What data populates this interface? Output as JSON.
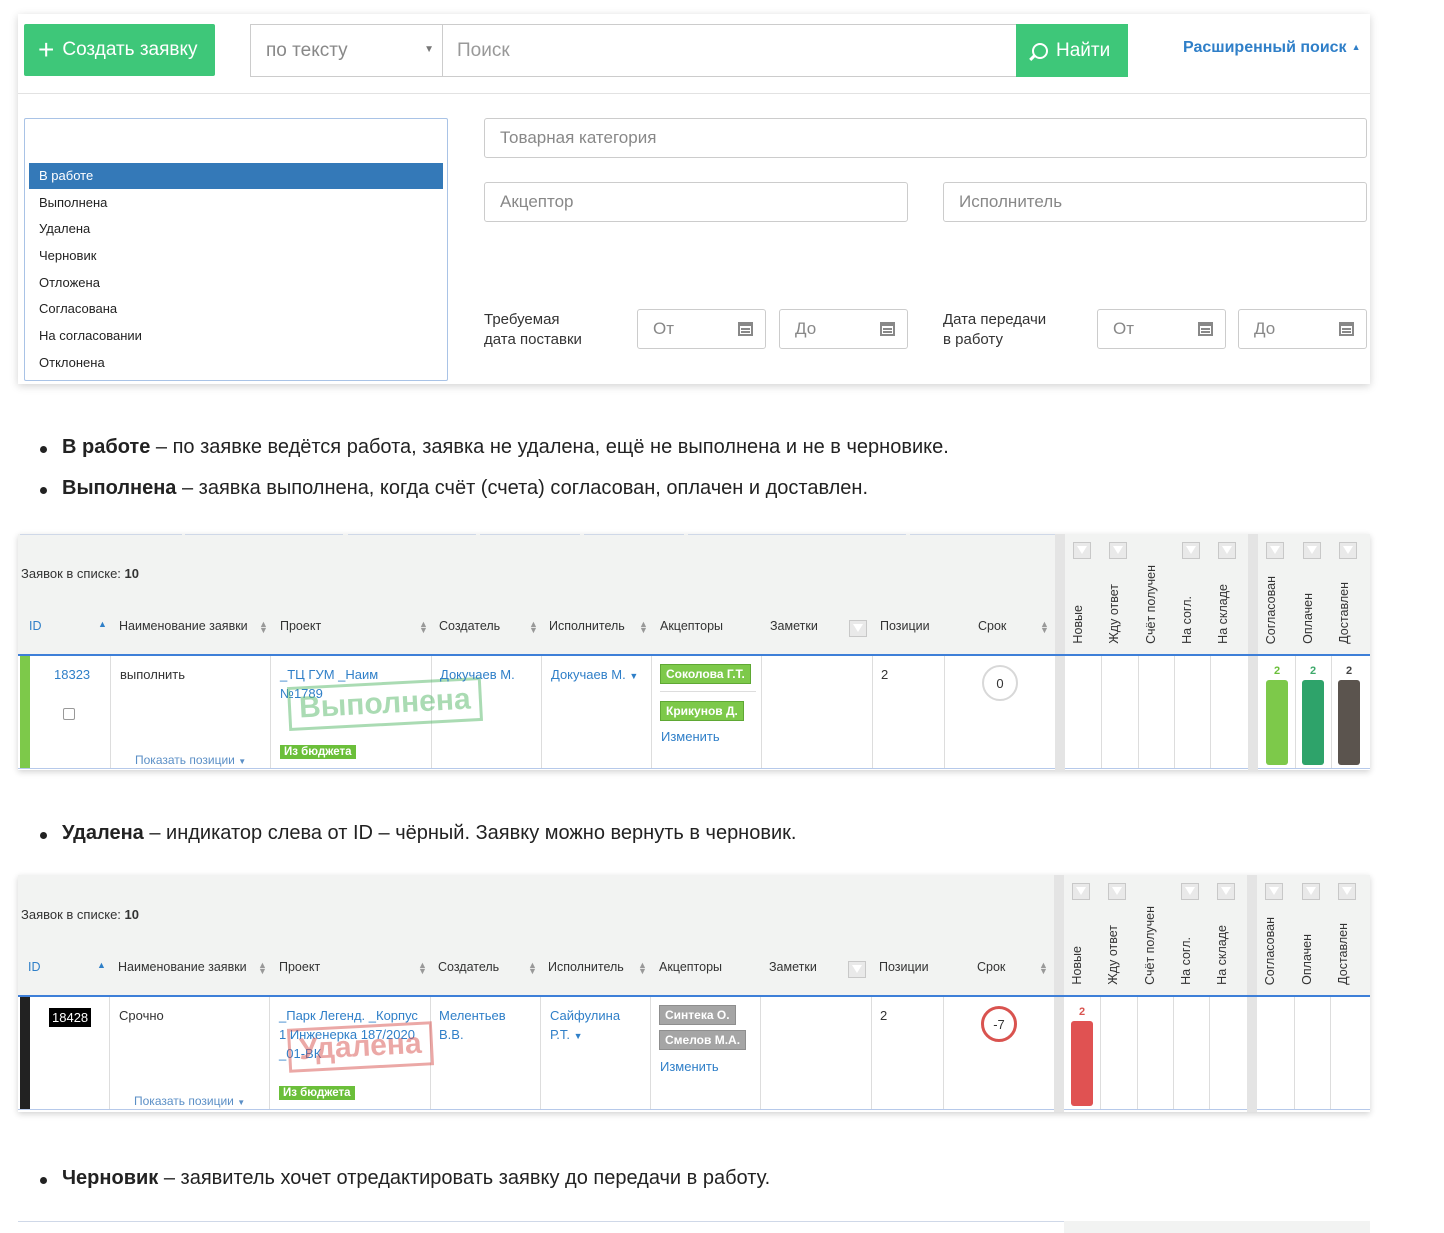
{
  "search_panel": {
    "create_label": "Создать заявку",
    "type_select": "по тексту",
    "search_placeholder": "Поиск",
    "find_label": "Найти",
    "advanced_label": "Расширенный поиск",
    "statuses": [
      "В работе",
      "Выполнена",
      "Удалена",
      "Черновик",
      "Отложена",
      "Согласована",
      "На согласовании",
      "Отклонена"
    ],
    "selected_status": "В работе",
    "category_placeholder": "Товарная категория",
    "acceptor_placeholder": "Акцептор",
    "executor_placeholder": "Исполнитель",
    "delivery_label_1": "Требуемая",
    "delivery_label_2": "дата поставки",
    "transfer_label_1": "Дата передачи",
    "transfer_label_2": "в работу",
    "from_placeholder": "От",
    "to_placeholder": "До"
  },
  "bullets": {
    "b1_bold": "В работе",
    "b1_text": " – по заявке ведётся работа, заявка не удалена, ещё не выполнена и не в черновике.",
    "b2_bold": "Выполнена",
    "b2_text": " – заявка выполнена, когда счёт (счета) согласован, оплачен и доставлен.",
    "b3_bold": "Удалена",
    "b3_text": " – индикатор слева от ID – чёрный. Заявку можно вернуть в черновик.",
    "b4_bold": "Черновик",
    "b4_text": " – заявитель хочет отредактировать заявку до передачи в работу."
  },
  "table_common": {
    "count_label": "Заявок в списке: ",
    "count_value": "10",
    "columns": [
      "ID",
      "Наименование заявки",
      "Проект",
      "Создатель",
      "Исполнитель",
      "Акцепторы",
      "Заметки",
      "Позиции",
      "Срок"
    ],
    "stages": [
      "Новые",
      "Жду ответ",
      "Счёт получен",
      "На согл.",
      "На складе",
      "Согласован",
      "Оплачен",
      "Доставлен"
    ],
    "show_positions": "Показать позиции",
    "change_label": "Изменить",
    "budget_label": "Из бюджета"
  },
  "table1": {
    "id": "18323",
    "name": "выполнить",
    "project_1": "_ТЦ ГУМ _Наим",
    "project_2": "№1789",
    "stamp": "Выполнена",
    "creator": "Докучаев М.",
    "executor": "Докучаев М.",
    "acceptor_1": "Соколова Г.Т.",
    "acceptor_2": "Крикунов Д.",
    "positions": "2",
    "deadline": "0",
    "indicator_color": "#7dc94a",
    "stage_counts": {
      "Согласован": "2",
      "Оплачен": "2",
      "Доставлен": "2"
    }
  },
  "table2": {
    "id": "18428",
    "name": "Срочно",
    "project_1": "_Парк Легенд. _Корпус",
    "project_2": "1 Инженерка 187/2020",
    "project_3": "_01-ВК",
    "stamp": "Удалена",
    "creator_1": "Мелентьев",
    "creator_2": "В.В.",
    "executor_1": "Сайфулина",
    "executor_2": "Р.Т.",
    "acceptor_1": "Синтека О.",
    "acceptor_2": "Смелов М.А.",
    "positions": "2",
    "deadline": "-7",
    "indicator_color": "#222222",
    "stage_counts": {
      "Новые": "2"
    }
  }
}
